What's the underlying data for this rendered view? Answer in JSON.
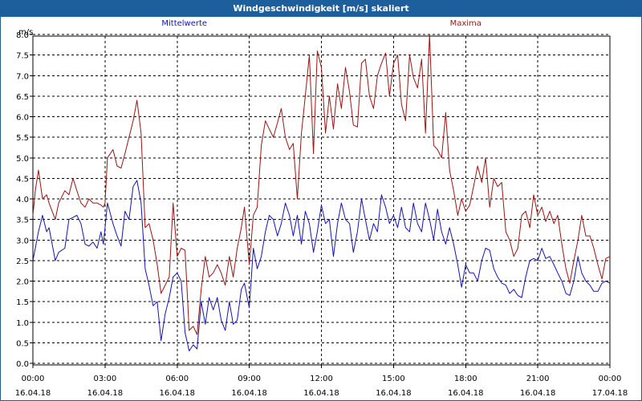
{
  "window": {
    "title": "Windgeschwindigkeit [m/s] skaliert"
  },
  "chart_data": {
    "type": "line",
    "title": "Windgeschwindigkeit [m/s] skaliert",
    "ylabel": "m/s",
    "ylim": [
      0,
      8.0
    ],
    "xlim": [
      0,
      24
    ],
    "grid": true,
    "y_ticks": [
      "0.0",
      "0.5",
      "1.0",
      "1.5",
      "2.0",
      "2.5",
      "3.0",
      "3.5",
      "4.0",
      "4.5",
      "5.0",
      "5.5",
      "6.0",
      "6.5",
      "7.0",
      "7.5",
      "8.0"
    ],
    "x_ticks": [
      {
        "time": "00:00",
        "date": "16.04.18"
      },
      {
        "time": "03:00",
        "date": "16.04.18"
      },
      {
        "time": "06:00",
        "date": "16.04.18"
      },
      {
        "time": "09:00",
        "date": "16.04.18"
      },
      {
        "time": "12:00",
        "date": "16.04.18"
      },
      {
        "time": "15:00",
        "date": "16.04.18"
      },
      {
        "time": "18:00",
        "date": "16.04.18"
      },
      {
        "time": "21:00",
        "date": "16.04.18"
      },
      {
        "time": "00:00",
        "date": "17.04.18"
      }
    ],
    "series": [
      {
        "name": "Mittelwerte",
        "color": "#1414b4",
        "x": [
          0.0,
          0.1,
          0.23,
          0.4,
          0.57,
          0.67,
          0.8,
          0.93,
          1.07,
          1.33,
          1.5,
          1.67,
          1.83,
          2.0,
          2.17,
          2.33,
          2.5,
          2.67,
          2.83,
          2.93,
          3.0,
          3.1,
          3.33,
          3.5,
          3.67,
          3.83,
          4.0,
          4.17,
          4.33,
          4.5,
          4.67,
          4.83,
          5.0,
          5.17,
          5.33,
          5.5,
          5.67,
          5.83,
          6.0,
          6.17,
          6.33,
          6.5,
          6.67,
          6.83,
          7.0,
          7.17,
          7.33,
          7.5,
          7.67,
          7.83,
          8.0,
          8.17,
          8.33,
          8.5,
          8.67,
          8.8,
          9.0,
          9.17,
          9.33,
          9.5,
          9.67,
          9.83,
          10.0,
          10.17,
          10.33,
          10.5,
          10.67,
          10.83,
          11.0,
          11.17,
          11.33,
          11.5,
          11.67,
          11.83,
          12.0,
          12.17,
          12.33,
          12.5,
          12.67,
          12.83,
          13.0,
          13.17,
          13.33,
          13.5,
          13.67,
          13.83,
          14.0,
          14.17,
          14.33,
          14.5,
          14.67,
          14.83,
          15.0,
          15.17,
          15.33,
          15.5,
          15.67,
          15.83,
          16.0,
          16.17,
          16.33,
          16.5,
          16.67,
          16.83,
          17.0,
          17.17,
          17.33,
          17.5,
          17.67,
          17.83,
          18.0,
          18.17,
          18.33,
          18.5,
          18.67,
          18.83,
          19.0,
          19.17,
          19.33,
          19.5,
          19.67,
          19.83,
          20.0,
          20.17,
          20.33,
          20.5,
          20.67,
          20.83,
          21.0,
          21.17,
          21.33,
          21.5,
          21.67,
          21.83,
          22.0,
          22.17,
          22.33,
          22.5,
          22.67,
          22.83,
          23.0,
          23.17,
          23.33,
          23.5,
          23.67,
          23.83,
          24.0
        ],
        "values": [
          2.5,
          2.8,
          3.2,
          3.6,
          3.2,
          3.3,
          2.9,
          2.5,
          2.7,
          2.8,
          3.5,
          3.55,
          3.6,
          3.4,
          2.9,
          2.85,
          2.95,
          2.8,
          3.2,
          2.9,
          3.3,
          3.9,
          3.4,
          3.1,
          2.85,
          3.7,
          3.5,
          4.3,
          4.45,
          3.9,
          2.3,
          1.9,
          1.4,
          1.5,
          0.55,
          1.2,
          1.6,
          2.1,
          2.2,
          2.0,
          0.75,
          0.3,
          0.45,
          0.35,
          1.5,
          0.95,
          1.6,
          1.3,
          1.6,
          1.05,
          0.8,
          1.5,
          0.95,
          1.05,
          1.8,
          1.95,
          1.35,
          2.8,
          2.3,
          2.6,
          3.2,
          3.6,
          3.5,
          3.1,
          3.4,
          3.9,
          3.6,
          3.1,
          3.6,
          2.9,
          3.7,
          3.4,
          2.7,
          3.2,
          3.85,
          3.4,
          3.5,
          2.6,
          3.4,
          3.9,
          3.5,
          3.4,
          2.7,
          3.2,
          4.0,
          3.5,
          3.0,
          3.4,
          3.2,
          4.1,
          3.8,
          3.4,
          3.6,
          3.3,
          3.8,
          3.3,
          3.2,
          3.9,
          3.4,
          3.2,
          3.9,
          3.5,
          3.0,
          3.75,
          3.2,
          2.9,
          3.3,
          2.9,
          2.4,
          1.85,
          2.4,
          2.2,
          2.2,
          2.0,
          2.5,
          2.8,
          2.75,
          2.3,
          2.1,
          1.95,
          1.9,
          1.7,
          1.8,
          1.65,
          1.6,
          2.1,
          2.5,
          2.55,
          2.5,
          2.8,
          2.55,
          2.6,
          2.4,
          2.2,
          2.0,
          1.7,
          1.65,
          2.0,
          2.6,
          2.2,
          2.0,
          1.9,
          1.75,
          1.75,
          1.95,
          2.0,
          1.95
        ]
      },
      {
        "name": "Maxima",
        "color": "#9c1414",
        "x": [
          0.0,
          0.1,
          0.23,
          0.4,
          0.57,
          0.67,
          0.8,
          0.93,
          1.07,
          1.33,
          1.5,
          1.67,
          1.83,
          2.0,
          2.17,
          2.33,
          2.5,
          2.67,
          2.83,
          2.93,
          3.0,
          3.1,
          3.33,
          3.5,
          3.67,
          3.83,
          4.0,
          4.17,
          4.33,
          4.5,
          4.67,
          4.83,
          5.0,
          5.17,
          5.33,
          5.5,
          5.67,
          5.83,
          6.0,
          6.17,
          6.33,
          6.5,
          6.67,
          6.83,
          7.0,
          7.17,
          7.33,
          7.5,
          7.67,
          7.83,
          8.0,
          8.17,
          8.33,
          8.5,
          8.67,
          8.8,
          9.0,
          9.17,
          9.33,
          9.5,
          9.67,
          9.83,
          10.0,
          10.17,
          10.33,
          10.5,
          10.67,
          10.83,
          11.0,
          11.17,
          11.33,
          11.5,
          11.67,
          11.83,
          12.0,
          12.17,
          12.33,
          12.5,
          12.67,
          12.83,
          13.0,
          13.17,
          13.33,
          13.5,
          13.67,
          13.83,
          14.0,
          14.17,
          14.33,
          14.5,
          14.67,
          14.83,
          15.0,
          15.17,
          15.33,
          15.5,
          15.67,
          15.83,
          16.0,
          16.17,
          16.33,
          16.5,
          16.67,
          16.83,
          17.0,
          17.17,
          17.33,
          17.5,
          17.67,
          17.83,
          18.0,
          18.17,
          18.33,
          18.5,
          18.67,
          18.83,
          19.0,
          19.17,
          19.33,
          19.5,
          19.67,
          19.83,
          20.0,
          20.17,
          20.33,
          20.5,
          20.67,
          20.83,
          21.0,
          21.17,
          21.33,
          21.5,
          21.67,
          21.83,
          22.0,
          22.17,
          22.33,
          22.5,
          22.67,
          22.83,
          23.0,
          23.17,
          23.33,
          23.5,
          23.67,
          23.83,
          24.0
        ],
        "values": [
          3.6,
          4.2,
          4.7,
          4.0,
          4.1,
          3.9,
          3.7,
          3.5,
          3.9,
          4.2,
          4.1,
          4.5,
          4.2,
          3.9,
          3.8,
          4.0,
          3.9,
          3.9,
          3.85,
          3.8,
          3.9,
          5.0,
          5.2,
          4.8,
          4.75,
          5.1,
          5.5,
          5.9,
          6.4,
          5.6,
          3.3,
          3.4,
          3.0,
          2.4,
          1.7,
          1.9,
          2.1,
          3.9,
          2.6,
          2.8,
          2.75,
          0.8,
          0.9,
          0.7,
          1.8,
          2.6,
          2.1,
          2.2,
          2.4,
          2.2,
          1.9,
          2.6,
          2.1,
          2.8,
          3.3,
          3.8,
          2.4,
          3.6,
          3.8,
          5.3,
          5.9,
          5.7,
          5.5,
          5.85,
          6.2,
          5.5,
          5.2,
          5.35,
          4.0,
          5.6,
          6.5,
          7.5,
          5.1,
          7.6,
          7.2,
          5.6,
          6.5,
          5.7,
          6.8,
          6.2,
          7.2,
          6.6,
          5.8,
          5.75,
          7.3,
          7.4,
          6.5,
          6.2,
          7.0,
          7.3,
          7.55,
          6.5,
          7.3,
          7.5,
          6.3,
          5.9,
          7.5,
          6.95,
          6.7,
          7.4,
          5.6,
          8.0,
          5.3,
          5.2,
          5.0,
          6.1,
          4.7,
          4.2,
          3.6,
          4.0,
          3.7,
          3.85,
          4.3,
          4.8,
          4.4,
          5.0,
          3.8,
          4.5,
          4.3,
          4.4,
          3.2,
          3.0,
          2.6,
          2.8,
          3.6,
          3.7,
          3.3,
          4.1,
          3.6,
          3.8,
          3.45,
          3.7,
          3.4,
          3.6,
          2.9,
          2.3,
          1.95,
          2.5,
          3.0,
          3.6,
          3.1,
          3.1,
          2.8,
          2.4,
          2.05,
          2.55,
          2.6
        ]
      }
    ]
  }
}
